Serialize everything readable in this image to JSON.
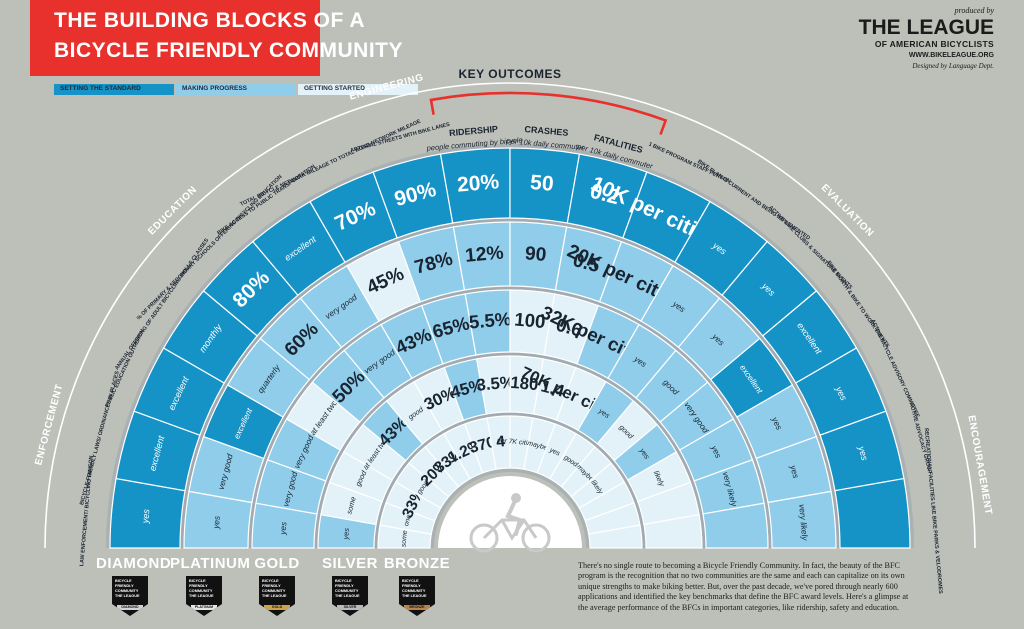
{
  "header": {
    "title_line1": "THE BUILDING BLOCKS OF A",
    "title_line2": "BICYCLE FRIENDLY COMMUNITY"
  },
  "legend": [
    {
      "label": "SETTING THE STANDARD",
      "color": "#1592c6"
    },
    {
      "label": "MAKING PROGRESS",
      "color": "#8fcdea"
    },
    {
      "label": "GETTING STARTED",
      "color": "#e3f2f8"
    }
  ],
  "producer": {
    "produced_by": "produced by",
    "name": "THE LEAGUE",
    "subname": "OF AMERICAN BICYCLISTS",
    "url": "WWW.BIKELEAGUE.ORG",
    "designed_by": "Designed by Language Dept."
  },
  "key_outcomes_label": "KEY OUTCOMES",
  "sections": [
    {
      "label": "ENFORCEMENT",
      "from": 0,
      "to": 2
    },
    {
      "label": "EDUCATION",
      "from": 3,
      "to": 5
    },
    {
      "label": "ENGINEERING",
      "from": 6,
      "to": 8
    },
    {
      "label": "EVALUATION",
      "from": 12,
      "to": 14
    },
    {
      "label": "ENCOURAGEMENT",
      "from": 15,
      "to": 18
    }
  ],
  "chart_data": {
    "type": "table",
    "levels": [
      "DIAMOND",
      "PLATINUM",
      "GOLD",
      "SILVER",
      "BRONZE"
    ],
    "categories": [
      {
        "label": "LAW ENFORCEMENT/ BICYCLING LIAISON",
        "values": [
          "yes",
          "yes",
          "yes",
          "yes",
          "some"
        ],
        "shades": [
          "S",
          "M",
          "M",
          "M",
          "G"
        ]
      },
      {
        "label": "BICYCLE-FRIENDLY LAWS/ ORDINANCES IN PLACES",
        "values": [
          "excellent",
          "very good",
          "very good",
          "some",
          "one"
        ],
        "shades": [
          "S",
          "M",
          "M",
          "G",
          "G"
        ]
      },
      {
        "label": "PUBLIC EDUCATION OUTREACH",
        "values": [
          "excellent",
          "excellent",
          "very good",
          "good",
          "33%"
        ],
        "shades": [
          "S",
          "S",
          "M",
          "G",
          "G"
        ]
      },
      {
        "label": "ANNUAL OFFERING OF ADULT BICYCLING SKILLS CLASSES",
        "values": [
          "monthly",
          "quarterly",
          "at least two",
          "at least two",
          "good"
        ],
        "shades": [
          "S",
          "M",
          "G",
          "G",
          "G"
        ]
      },
      {
        "label": "% OF PRIMARY & SECONDARY SCHOOLS OFFERING BICYCLING EDUCATION",
        "values": [
          "80%",
          "60%",
          "50%",
          "43%",
          "20%"
        ],
        "shades": [
          "S",
          "M",
          "M",
          "M",
          "G"
        ]
      },
      {
        "label": "BIKE ACCESS TO PUBLIC TRANSPORTATION",
        "values": [
          "excellent",
          "very good",
          "very good",
          "good",
          "33%"
        ],
        "shades": [
          "S",
          "M",
          "M",
          "G",
          "G"
        ]
      },
      {
        "label": "TOTAL BICYCLE NETWORK MILEAGE TO TOTAL ROAD NETWORK MILEAGE",
        "values": [
          "70%",
          "45%",
          "43%",
          "30%",
          "1.2%"
        ],
        "shades": [
          "S",
          "G",
          "M",
          "G",
          "G"
        ]
      },
      {
        "label": "ARTERIAL STREETS WITH BIKE LANES",
        "values": [
          "90%",
          "78%",
          "65%",
          "45%",
          "370"
        ],
        "shades": [
          "S",
          "M",
          "M",
          "M",
          "G"
        ]
      },
      {
        "label": "RIDERSHIP",
        "sub": "people commuting by bicycle",
        "values": [
          "20%",
          "12%",
          "5.5%",
          "3.5%",
          "4"
        ],
        "shades": [
          "S",
          "M",
          "M",
          "G",
          "G"
        ]
      },
      {
        "label": "CRASHES",
        "sub": "per 10k daily commuter",
        "values": [
          "50",
          "90",
          "100",
          "180",
          "per 7K citizens"
        ],
        "shades": [
          "S",
          "M",
          "G",
          "G",
          "G"
        ]
      },
      {
        "label": "FATALITIES",
        "sub": "per 10k daily commuter",
        "values": [
          "0.2",
          "0.5",
          "0.6",
          "1.4",
          "maybe"
        ],
        "shades": [
          "S",
          "M",
          "G",
          "G",
          "G"
        ]
      },
      {
        "label": "1 BIKE PROGRAM STAFF PERSON",
        "values": [
          "10K per citizens",
          "20K per citizens",
          "32K per citizens",
          "70K per citizens",
          "yes"
        ],
        "shades": [
          "S",
          "M",
          "M",
          "G",
          "G"
        ]
      },
      {
        "label": "BIKE PLAN IS CURRENT AND BEING IMPLEMENTED",
        "values": [
          "yes",
          "yes",
          "yes",
          "yes",
          "good"
        ],
        "shades": [
          "S",
          "M",
          "M",
          "M",
          "G"
        ]
      },
      {
        "label": "ACTIVE BIKE CLUBS & SIGNATURE EVENTS",
        "values": [
          "yes",
          "yes",
          "good",
          "good",
          "maybe"
        ],
        "shades": [
          "S",
          "M",
          "M",
          "G",
          "G"
        ]
      },
      {
        "label": "BIKE MONTH & BIKE TO WORK EVENTS",
        "values": [
          "excellent",
          "excellent",
          "very good",
          "yes",
          "likely"
        ],
        "shades": [
          "S",
          "S",
          "M",
          "M",
          "G"
        ]
      },
      {
        "label": "ACTIVE BICYCLE ADVISORY COMMITTEE",
        "values": [
          "yes",
          "yes",
          "yes",
          "likely",
          ""
        ],
        "shades": [
          "S",
          "M",
          "M",
          "G",
          "G"
        ]
      },
      {
        "label": "ACTIVE ADVOCACY GROUP",
        "values": [
          "yes",
          "yes",
          "very likely",
          "",
          ""
        ],
        "shades": [
          "S",
          "M",
          "M",
          "G",
          "G"
        ]
      },
      {
        "label": "RECREATIONAL FACILITIES LIKE BIKE PARKS & VELODROMES",
        "values": [
          "",
          "very likely",
          "",
          "",
          ""
        ],
        "shades": [
          "S",
          "M",
          "M",
          "G",
          "G"
        ]
      }
    ]
  },
  "tiers": [
    {
      "name": "DIAMOND",
      "badge_lines": [
        "BICYCLE",
        "FRIENDLY",
        "COMMUNITY",
        "THE LEAGUE"
      ],
      "level_text": "DIAMOND",
      "level_color": "#cfd4d8"
    },
    {
      "name": "PLATINUM",
      "badge_lines": [
        "BICYCLE",
        "FRIENDLY",
        "COMMUNITY",
        "THE LEAGUE"
      ],
      "level_text": "PLATINUM",
      "level_color": "#e6e6e6"
    },
    {
      "name": "GOLD",
      "badge_lines": [
        "BICYCLE",
        "FRIENDLY",
        "COMMUNITY",
        "THE LEAGUE"
      ],
      "level_text": "GOLD",
      "level_color": "#c9a449"
    },
    {
      "name": "SILVER",
      "badge_lines": [
        "BICYCLE",
        "FRIENDLY",
        "COMMUNITY",
        "THE LEAGUE"
      ],
      "level_text": "SILVER",
      "level_color": "#b9bcbf"
    },
    {
      "name": "BRONZE",
      "badge_lines": [
        "BICYCLE",
        "FRIENDLY",
        "COMMUNITY",
        "THE LEAGUE"
      ],
      "level_text": "BRONZE",
      "level_color": "#b8844c"
    }
  ],
  "footnote": "There's no single route to becoming a Bicycle Friendly Community. In fact, the beauty of the BFC program is the recognition that no two communities are the same and each can capitalize on its own unique strengths to make biking better. But, over the past decade, we've pored through nearly 600 applications and identified the key benchmarks that define the BFC award levels. Here's a glimpse at the average performance of the BFCs in important categories, like ridership, safety and education.",
  "colors": {
    "background": "#bdbfb9",
    "title_red": "#e8312c",
    "setting_the_standard": "#1592c6",
    "making_progress": "#8fcdea",
    "getting_started": "#e3f2f8",
    "ring_gap": "#9aa6ae"
  },
  "icons": [
    "bicycle-rider-icon"
  ]
}
